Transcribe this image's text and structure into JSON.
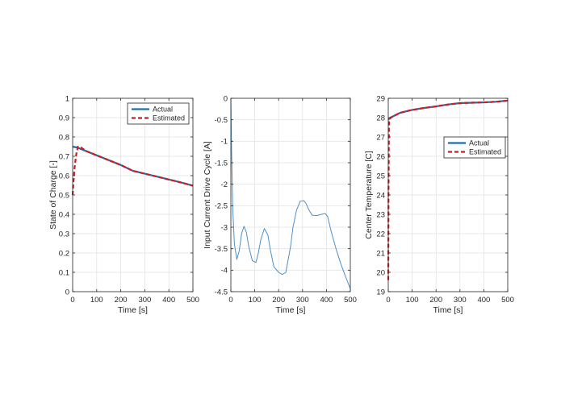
{
  "chart_data": [
    {
      "type": "line",
      "xlabel": "Time [s]",
      "ylabel": "State of Charge [-]",
      "xlim": [
        0,
        500
      ],
      "ylim": [
        0,
        1
      ],
      "xticks": [
        0,
        100,
        200,
        300,
        400,
        500
      ],
      "yticks": [
        0,
        0.1,
        0.2,
        0.3,
        0.4,
        0.5,
        0.6,
        0.7,
        0.8,
        0.9,
        1
      ],
      "ytick_labels": [
        "0",
        "0.1",
        "0.2",
        "0.3",
        "0.4",
        "0.5",
        "0.6",
        "0.7",
        "0.8",
        "0.9",
        "1"
      ],
      "grid": true,
      "legend": "top-right",
      "series": [
        {
          "name": "Actual",
          "style": "solid",
          "color": "#1f6fa6",
          "x": [
            0,
            20,
            50,
            100,
            150,
            200,
            250,
            300,
            350,
            400,
            450,
            500
          ],
          "y": [
            0.75,
            0.745,
            0.73,
            0.705,
            0.68,
            0.655,
            0.625,
            0.61,
            0.595,
            0.58,
            0.565,
            0.548
          ]
        },
        {
          "name": "Estimated",
          "style": "dashed",
          "color": "#d7191c",
          "x": [
            0,
            3,
            8,
            15,
            22,
            35,
            60,
            100,
            150,
            200,
            250,
            300,
            350,
            400,
            450,
            500
          ],
          "y": [
            0.5,
            0.56,
            0.64,
            0.71,
            0.75,
            0.745,
            0.725,
            0.705,
            0.68,
            0.655,
            0.625,
            0.61,
            0.595,
            0.58,
            0.565,
            0.548
          ]
        }
      ]
    },
    {
      "type": "line",
      "xlabel": "Time [s]",
      "ylabel": "Input Current Drive Cycle [A]",
      "xlim": [
        0,
        500
      ],
      "ylim": [
        -4.5,
        0
      ],
      "xticks": [
        0,
        100,
        200,
        300,
        400,
        500
      ],
      "yticks": [
        -4.5,
        -4,
        -3.5,
        -3,
        -2.5,
        -2,
        -1.5,
        -1,
        -0.5,
        0
      ],
      "ytick_labels": [
        "-4.5",
        "-4",
        "-3.5",
        "-3",
        "-2.5",
        "-2",
        "-1.5",
        "-1",
        "-0.5",
        "0"
      ],
      "grid": true,
      "series": [
        {
          "name": "",
          "style": "solid",
          "color": "#4f8fc6",
          "x": [
            0,
            3,
            8,
            15,
            25,
            35,
            45,
            55,
            65,
            75,
            90,
            105,
            115,
            125,
            140,
            155,
            165,
            180,
            200,
            215,
            230,
            250,
            260,
            275,
            290,
            305,
            315,
            325,
            340,
            360,
            380,
            395,
            405,
            420,
            440,
            460,
            480,
            500
          ],
          "y": [
            0,
            -1.2,
            -2.6,
            -3.4,
            -3.75,
            -3.55,
            -3.15,
            -2.98,
            -3.12,
            -3.45,
            -3.78,
            -3.82,
            -3.6,
            -3.3,
            -3.03,
            -3.18,
            -3.52,
            -3.92,
            -4.05,
            -4.1,
            -4.05,
            -3.45,
            -3.0,
            -2.6,
            -2.4,
            -2.38,
            -2.45,
            -2.58,
            -2.72,
            -2.73,
            -2.7,
            -2.68,
            -2.75,
            -3.1,
            -3.5,
            -3.85,
            -4.15,
            -4.43
          ]
        }
      ]
    },
    {
      "type": "line",
      "xlabel": "Time [s]",
      "ylabel": "Center Temperature [C]",
      "xlim": [
        0,
        500
      ],
      "ylim": [
        19,
        29
      ],
      "xticks": [
        0,
        100,
        200,
        300,
        400,
        500
      ],
      "yticks": [
        19,
        20,
        21,
        22,
        23,
        24,
        25,
        26,
        27,
        28,
        29
      ],
      "ytick_labels": [
        "19",
        "20",
        "21",
        "22",
        "23",
        "24",
        "25",
        "26",
        "27",
        "28",
        "29"
      ],
      "grid": true,
      "legend": "right",
      "series": [
        {
          "name": "Actual",
          "style": "solid",
          "color": "#1f6fa6",
          "x": [
            0,
            10,
            25,
            50,
            100,
            150,
            200,
            250,
            300,
            350,
            400,
            450,
            500
          ],
          "y": [
            27.9,
            28.0,
            28.1,
            28.25,
            28.4,
            28.5,
            28.58,
            28.68,
            28.75,
            28.77,
            28.79,
            28.82,
            28.88
          ]
        },
        {
          "name": "Estimated",
          "style": "dashed",
          "color": "#d7191c",
          "x": [
            0,
            1,
            3,
            5,
            10,
            25,
            50,
            100,
            150,
            200,
            250,
            300,
            350,
            400,
            450,
            500
          ],
          "y": [
            19.6,
            24.0,
            27.7,
            27.9,
            28.0,
            28.1,
            28.25,
            28.4,
            28.5,
            28.58,
            28.68,
            28.75,
            28.77,
            28.79,
            28.82,
            28.88
          ]
        }
      ]
    }
  ]
}
